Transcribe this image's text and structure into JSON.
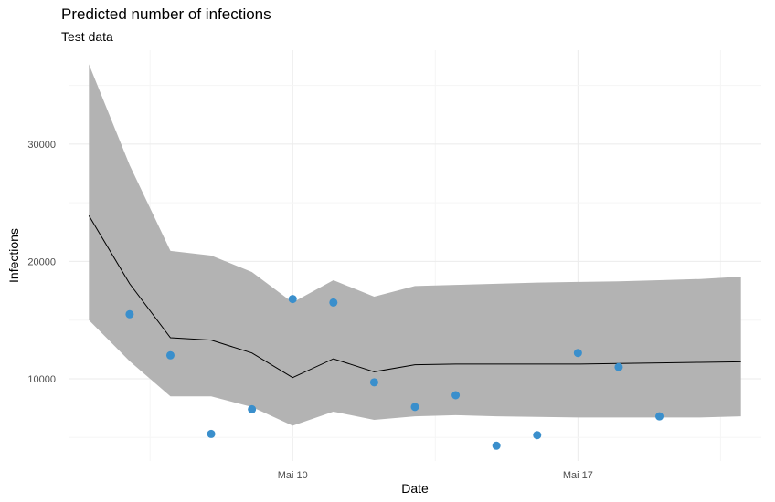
{
  "chart_data": {
    "type": "line",
    "title": "Predicted number of infections",
    "subtitle": "Test data",
    "xlabel": "Date",
    "ylabel": "Infections",
    "x_tick_labels": [
      {
        "date": "2020-05-10",
        "label": "Mai 10"
      },
      {
        "date": "2020-05-17",
        "label": "Mai 17"
      }
    ],
    "y_ticks": [
      10000,
      20000,
      30000
    ],
    "x_range": [
      "2020-05-04 12:00",
      "2020-05-21 12:00"
    ],
    "y_range": [
      3000,
      38000
    ],
    "grid": true,
    "colors": {
      "band": "#b3b3b3",
      "line": "#000000",
      "points": "#3a8fcc",
      "grid_major": "#ebebeb",
      "grid_minor": "#f5f5f5"
    },
    "dates": [
      "2020-05-05",
      "2020-05-06",
      "2020-05-07",
      "2020-05-08",
      "2020-05-09",
      "2020-05-10",
      "2020-05-11",
      "2020-05-12",
      "2020-05-13",
      "2020-05-14",
      "2020-05-15",
      "2020-05-16",
      "2020-05-17",
      "2020-05-18",
      "2020-05-19",
      "2020-05-20",
      "2020-05-21"
    ],
    "series": [
      {
        "type": "ribbon",
        "x": [
          "2020-05-05",
          "2020-05-06",
          "2020-05-07",
          "2020-05-08",
          "2020-05-09",
          "2020-05-10",
          "2020-05-11",
          "2020-05-12",
          "2020-05-13",
          "2020-05-14",
          "2020-05-15",
          "2020-05-16",
          "2020-05-17",
          "2020-05-18",
          "2020-05-19",
          "2020-05-20",
          "2020-05-21"
        ],
        "lower": [
          15000,
          11500,
          8500,
          8500,
          7600,
          6000,
          7200,
          6500,
          6800,
          6900,
          6800,
          6750,
          6700,
          6700,
          6700,
          6700,
          6800
        ],
        "upper": [
          36800,
          28200,
          20900,
          20500,
          19100,
          16500,
          18400,
          17000,
          17900,
          18000,
          18100,
          18200,
          18250,
          18300,
          18400,
          18500,
          18700
        ]
      },
      {
        "type": "line",
        "x": [
          "2020-05-05",
          "2020-05-06",
          "2020-05-07",
          "2020-05-08",
          "2020-05-09",
          "2020-05-10",
          "2020-05-11",
          "2020-05-12",
          "2020-05-13",
          "2020-05-14",
          "2020-05-15",
          "2020-05-16",
          "2020-05-17",
          "2020-05-18",
          "2020-05-19",
          "2020-05-20",
          "2020-05-21"
        ],
        "y": [
          23900,
          18100,
          13500,
          13300,
          12200,
          10100,
          11700,
          10600,
          11200,
          11250,
          11250,
          11250,
          11250,
          11300,
          11350,
          11400,
          11450
        ]
      },
      {
        "type": "scatter",
        "x": [
          "2020-05-05",
          "2020-05-06",
          "2020-05-07",
          "2020-05-08",
          "2020-05-09",
          "2020-05-10",
          "2020-05-11",
          "2020-05-12",
          "2020-05-13",
          "2020-05-14",
          "2020-05-15",
          "2020-05-16",
          "2020-05-17",
          "2020-05-18",
          "2020-05-19",
          "2020-05-20",
          "2020-05-21"
        ],
        "y": [
          null,
          15500,
          12000,
          5300,
          7400,
          16800,
          16500,
          9700,
          7600,
          8600,
          4300,
          5200,
          12200,
          11000,
          6800,
          null,
          null
        ]
      }
    ]
  }
}
